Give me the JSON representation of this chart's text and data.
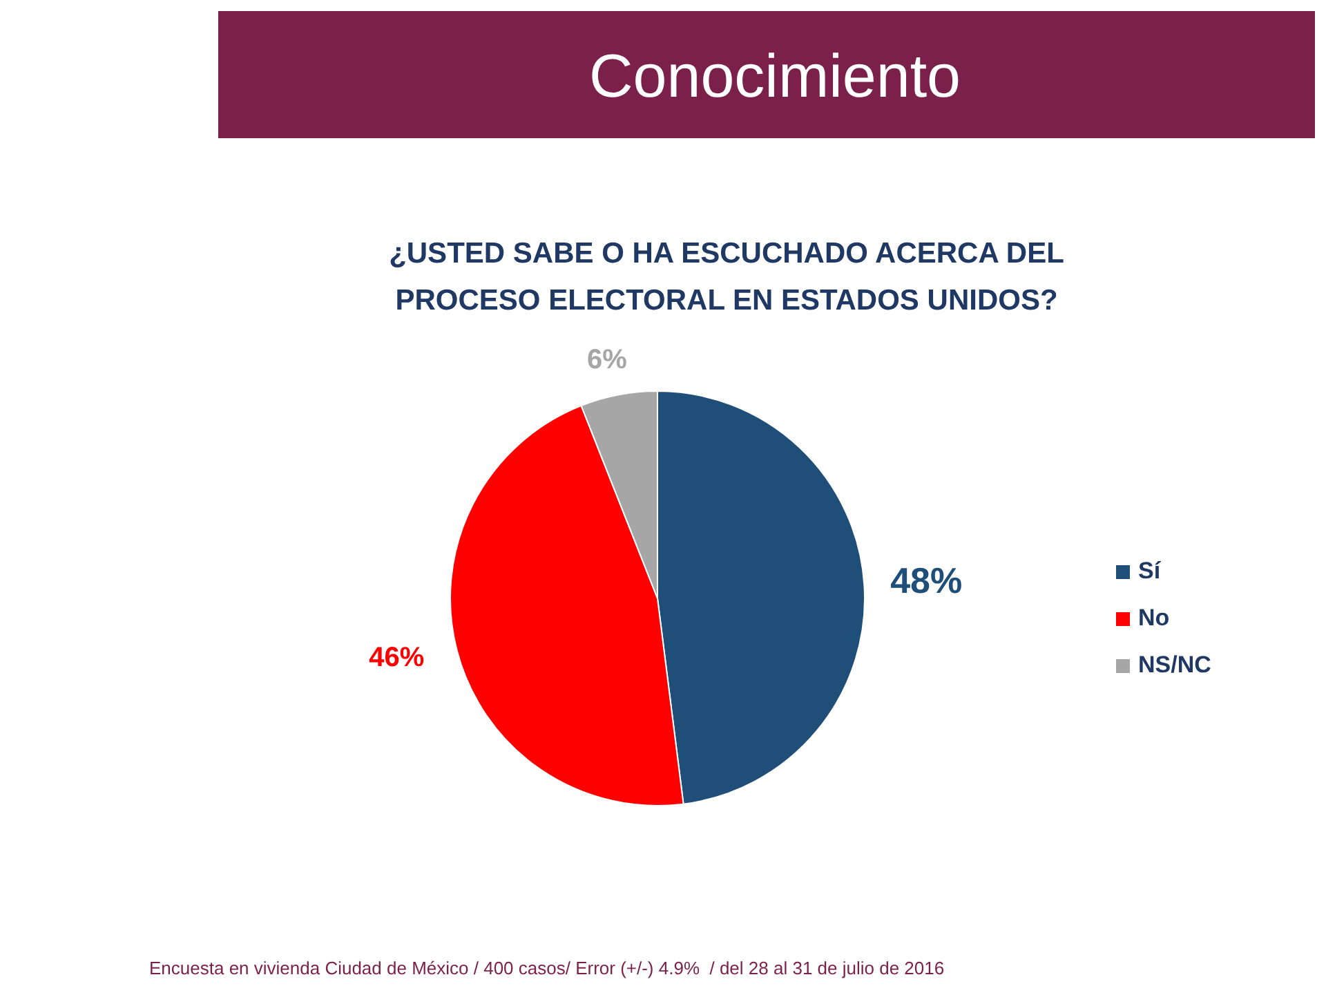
{
  "chart_data": {
    "type": "pie",
    "title": "Conocimiento",
    "subtitle": "¿USTED SABE O HA ESCUCHADO ACERCA DEL PROCESO ELECTORAL EN ESTADOS UNIDOS?",
    "categories": [
      "Sí",
      "No",
      "NS/NC"
    ],
    "values": [
      48,
      46,
      6
    ],
    "colors": [
      "#1f4e79",
      "#ff0000",
      "#a6a6a6"
    ],
    "value_labels": [
      "48%",
      "46%",
      "6%"
    ],
    "legend": "right",
    "annotations": [
      "Encuesta en vivienda Ciudad de México / 400 casos/ Error (+/-) 4.9%  / del 28 al 31 de julio de 2016"
    ]
  }
}
